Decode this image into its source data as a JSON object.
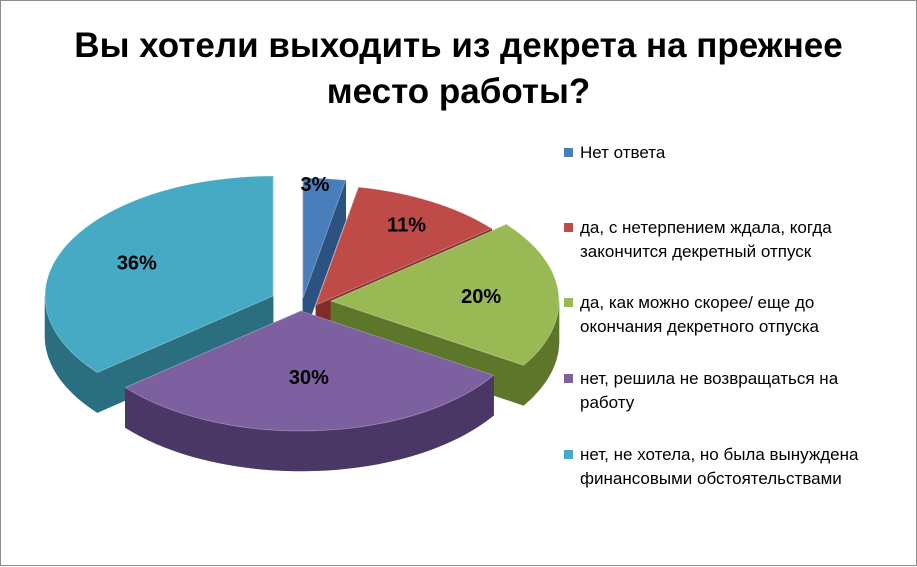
{
  "chart_data": {
    "type": "pie",
    "title": "Вы хотели выходить из декрета на прежнее место работы?",
    "title_lines": [
      "Вы хотели выходить из декрета на прежнее",
      "место работы?"
    ],
    "legend_position": "right",
    "categories": [
      "Нет ответа",
      "да, с нетерпением ждала, когда закончится декретный отпуск",
      "да, как можно скорее/ еще до окончания декретного отпуска",
      "нет, решила не возвращаться на работу",
      "нет, не хотела, но была вынуждена финансовыми обстоятельствами"
    ],
    "legend_lines": [
      [
        "Нет ответа"
      ],
      [
        "да, с нетерпением ждала, когда",
        "закончится декретный отпуск"
      ],
      [
        "да, как можно скорее/ еще до",
        "окончания декретного отпуска"
      ],
      [
        "нет, решила не возвращаться на",
        "работу"
      ],
      [
        "нет, не хотела, но была вынуждена",
        "финансовыми обстоятельствами"
      ]
    ],
    "values": [
      3,
      11,
      20,
      30,
      36
    ],
    "data_labels": [
      "3%",
      "11%",
      "20%",
      "30%",
      "36%"
    ],
    "colors": [
      "#4a7ebb",
      "#be4b48",
      "#98b954",
      "#7d60a0",
      "#46aac5"
    ],
    "side_colors": [
      "#2c5282",
      "#7e2d2b",
      "#5e7629",
      "#4a3766",
      "#2b6e80"
    ]
  }
}
